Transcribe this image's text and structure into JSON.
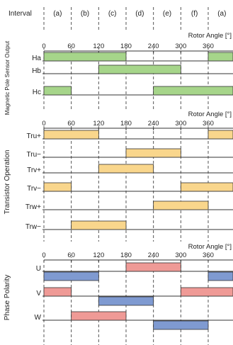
{
  "header": {
    "label": "Interval",
    "intervals": [
      "(a)",
      "(b)",
      "(c)",
      "(d)",
      "(e)",
      "(f)",
      "(a)"
    ]
  },
  "axis": {
    "title": "Rotor Angle [°]",
    "ticks": [
      "0",
      "60",
      "120",
      "180",
      "240",
      "300",
      "360"
    ],
    "range_deg": [
      0,
      420
    ]
  },
  "colors": {
    "green": "#a6d58a",
    "yellow": "#f9d68c",
    "blue": "#7f9ad1",
    "red": "#ef9a96",
    "line": "#333333"
  },
  "sections": [
    {
      "key": "sensor",
      "side_label": "Magnetic Pole Sensor Output",
      "color": "green",
      "rows": [
        {
          "label": "Ha",
          "bars": [
            {
              "start": 0,
              "end": 180
            },
            {
              "start": 360,
              "end": 420
            }
          ]
        },
        {
          "label": "Hb",
          "bars": [
            {
              "start": 120,
              "end": 300
            }
          ]
        },
        {
          "label": "Hc",
          "bars": [
            {
              "start": 0,
              "end": 60
            },
            {
              "start": 240,
              "end": 420
            }
          ]
        }
      ]
    },
    {
      "key": "transistor",
      "side_label": "Transistor Operation",
      "color": "yellow",
      "rows": [
        {
          "label": "Tru+",
          "bars": [
            {
              "start": 0,
              "end": 120
            },
            {
              "start": 360,
              "end": 420
            }
          ]
        },
        {
          "label": "Tru−",
          "bars": [
            {
              "start": 180,
              "end": 300
            }
          ]
        },
        {
          "label": "Trv+",
          "bars": [
            {
              "start": 120,
              "end": 240
            }
          ]
        },
        {
          "label": "Trv−",
          "bars": [
            {
              "start": 0,
              "end": 60
            },
            {
              "start": 300,
              "end": 420
            }
          ]
        },
        {
          "label": "Trw+",
          "bars": [
            {
              "start": 240,
              "end": 360
            }
          ]
        },
        {
          "label": "Trw−",
          "bars": [
            {
              "start": 60,
              "end": 180
            }
          ]
        }
      ]
    },
    {
      "key": "phase",
      "side_label": "Phase Polarity",
      "rows": [
        {
          "label": "U",
          "bars": [
            {
              "start": 0,
              "end": 120,
              "polarity": "negative"
            },
            {
              "start": 180,
              "end": 300,
              "polarity": "positive"
            },
            {
              "start": 360,
              "end": 420,
              "polarity": "negative"
            }
          ]
        },
        {
          "label": "V",
          "bars": [
            {
              "start": 0,
              "end": 60,
              "polarity": "positive"
            },
            {
              "start": 120,
              "end": 240,
              "polarity": "negative"
            },
            {
              "start": 300,
              "end": 420,
              "polarity": "positive"
            }
          ]
        },
        {
          "label": "W",
          "bars": [
            {
              "start": 60,
              "end": 180,
              "polarity": "positive"
            },
            {
              "start": 240,
              "end": 360,
              "polarity": "negative"
            }
          ]
        }
      ]
    }
  ]
}
